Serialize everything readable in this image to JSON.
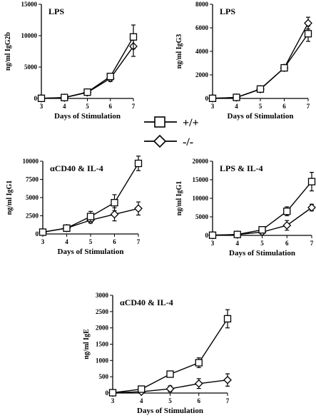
{
  "x_label": "Days of Stimulation",
  "legend": [
    {
      "label": "+/+",
      "marker": "square"
    },
    {
      "label": "-/-",
      "marker": "diamond"
    }
  ],
  "colors": {
    "ink": "#000000",
    "background": "#ffffff"
  },
  "chart_data": [
    {
      "type": "line",
      "title": "LPS",
      "ylabel": "ng/ml IgG2b",
      "xlabel": "Days of Stimulation",
      "x": [
        3,
        4,
        5,
        6,
        7
      ],
      "xlim": [
        3,
        7
      ],
      "ylim": [
        0,
        15000
      ],
      "yticks": [
        0,
        5000,
        10000,
        15000
      ],
      "series": [
        {
          "marker": "square",
          "values": [
            20,
            150,
            1000,
            3500,
            9800
          ],
          "err": [
            0,
            60,
            120,
            500,
            1900
          ]
        },
        {
          "marker": "diamond",
          "values": [
            20,
            120,
            950,
            3200,
            8300
          ],
          "err": [
            0,
            50,
            120,
            500,
            1600
          ]
        }
      ]
    },
    {
      "type": "line",
      "title": "LPS",
      "ylabel": "ng/ml IgG3",
      "xlabel": "Days of Stimulation",
      "x": [
        3,
        4,
        5,
        6,
        7
      ],
      "xlim": [
        3,
        7
      ],
      "ylim": [
        0,
        8000
      ],
      "yticks": [
        0,
        2000,
        4000,
        6000,
        8000
      ],
      "series": [
        {
          "marker": "square",
          "values": [
            10,
            90,
            800,
            2600,
            5500
          ],
          "err": [
            0,
            40,
            80,
            100,
            650
          ]
        },
        {
          "marker": "diamond",
          "values": [
            10,
            80,
            780,
            2600,
            6400
          ],
          "err": [
            0,
            40,
            80,
            100,
            500
          ]
        }
      ]
    },
    {
      "type": "line",
      "title": "αCD40 & IL-4",
      "ylabel": "ng/ml IgG1",
      "xlabel": "Days of Stimulation",
      "x": [
        3,
        4,
        5,
        6,
        7
      ],
      "xlim": [
        3,
        7
      ],
      "ylim": [
        0,
        10000
      ],
      "yticks": [
        0,
        2500,
        5000,
        7500,
        10000
      ],
      "series": [
        {
          "marker": "square",
          "values": [
            250,
            800,
            2400,
            4300,
            9700
          ],
          "err": [
            50,
            100,
            700,
            1100,
            1000
          ]
        },
        {
          "marker": "diamond",
          "values": [
            250,
            800,
            1900,
            2700,
            3500
          ],
          "err": [
            50,
            100,
            400,
            900,
            900
          ]
        }
      ]
    },
    {
      "type": "line",
      "title": "LPS & IL-4",
      "ylabel": "ng/ml IgG1",
      "xlabel": "Days of Stimulation",
      "x": [
        3,
        4,
        5,
        6,
        7
      ],
      "xlim": [
        3,
        7
      ],
      "ylim": [
        0,
        20000
      ],
      "yticks": [
        0,
        5000,
        10000,
        15000,
        20000
      ],
      "series": [
        {
          "marker": "square",
          "values": [
            50,
            250,
            1500,
            6500,
            14500
          ],
          "err": [
            0,
            80,
            300,
            1200,
            2500
          ]
        },
        {
          "marker": "diamond",
          "values": [
            50,
            200,
            900,
            2700,
            7500
          ],
          "err": [
            0,
            80,
            250,
            1300,
            900
          ]
        }
      ]
    },
    {
      "type": "line",
      "title": "αCD40 & IL-4",
      "ylabel": "ng/ml IgE",
      "xlabel": "Days of Stimulation",
      "x": [
        3,
        4,
        5,
        6,
        7
      ],
      "xlim": [
        3,
        7
      ],
      "ylim": [
        0,
        3000
      ],
      "yticks": [
        0,
        500,
        1000,
        1500,
        2000,
        2500,
        3000
      ],
      "series": [
        {
          "marker": "square",
          "values": [
            10,
            120,
            580,
            930,
            2280
          ],
          "err": [
            0,
            30,
            80,
            150,
            280
          ]
        },
        {
          "marker": "diamond",
          "values": [
            10,
            40,
            130,
            290,
            400
          ],
          "err": [
            0,
            20,
            90,
            150,
            190
          ]
        }
      ]
    }
  ]
}
